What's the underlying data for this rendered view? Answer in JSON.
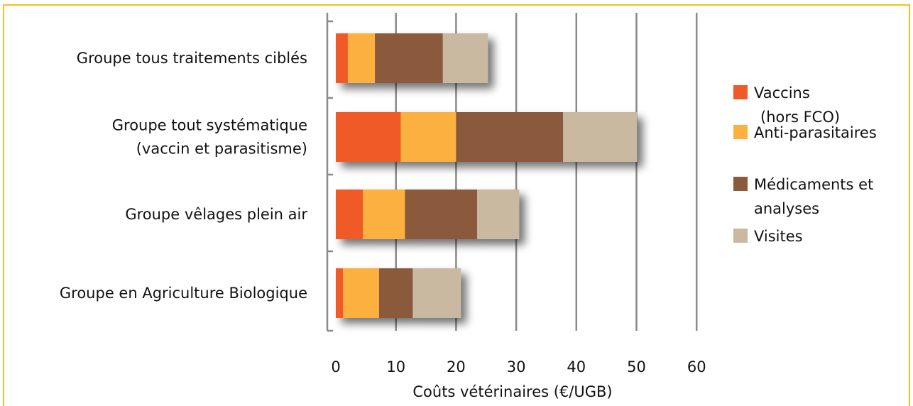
{
  "chart_data": {
    "type": "bar",
    "orientation": "horizontal",
    "stacked": true,
    "categories": [
      [
        "Groupe tous traitements ciblés"
      ],
      [
        "Groupe tout systématique",
        "(vaccin et parasitisme)"
      ],
      [
        "Groupe vêlages plein air"
      ],
      [
        "Groupe en Agriculture Biologique"
      ]
    ],
    "series": [
      {
        "name": [
          "Vaccins",
          "(hors FCO)"
        ],
        "color": "#f05a28",
        "values": [
          2,
          10.8,
          4.5,
          1.2
        ]
      },
      {
        "name": [
          "Anti-parasitaires"
        ],
        "color": "#fbb040",
        "values": [
          4.5,
          9.2,
          7,
          6
        ]
      },
      {
        "name": [
          "Médicaments et",
          "analyses"
        ],
        "color": "#8b5a3c",
        "values": [
          11.3,
          17.8,
          12,
          5.6
        ]
      },
      {
        "name": [
          "Visites"
        ],
        "color": "#c8b9a0",
        "values": [
          7.5,
          12.3,
          7,
          8
        ]
      }
    ],
    "xlabel": "Coûts vétérinaires (€/UGB)",
    "ylabel": "",
    "xlim": [
      0,
      60
    ],
    "xticks": [
      0,
      10,
      20,
      30,
      40,
      50,
      60
    ],
    "grid": "vertical",
    "legend": "right",
    "frame_color": "#f3c21a"
  }
}
